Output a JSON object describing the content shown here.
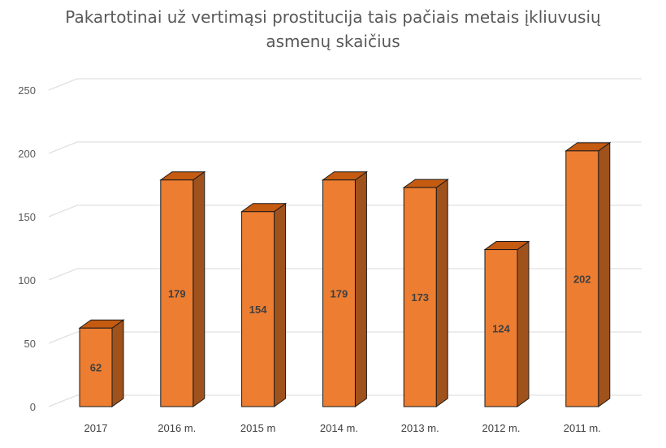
{
  "chart_data": {
    "type": "bar",
    "title_line1": "Pakartotinai už vertimąsi prostitucija tais pačiais metais įkliuvusių",
    "title_line2": "asmenų skaičius",
    "categories": [
      "2017",
      "2016 m.",
      "2015 m",
      "2014 m.",
      "2013 m.",
      "2012 m.",
      "2011 m."
    ],
    "values": [
      62,
      179,
      154,
      179,
      173,
      124,
      202
    ],
    "data_labels": [
      "62",
      "179",
      "154",
      "179",
      "173",
      "124",
      "202"
    ],
    "ylim": [
      0,
      250
    ],
    "yticks": [
      "0",
      "50",
      "100",
      "150",
      "200",
      "250"
    ],
    "grid": true,
    "legend": "none",
    "colors": {
      "bar_front": "#ED7D31",
      "bar_top": "#C55A11",
      "bar_side": "#A0521D",
      "edge": "#1a1a1a",
      "grid": "#D9D9D9"
    }
  }
}
